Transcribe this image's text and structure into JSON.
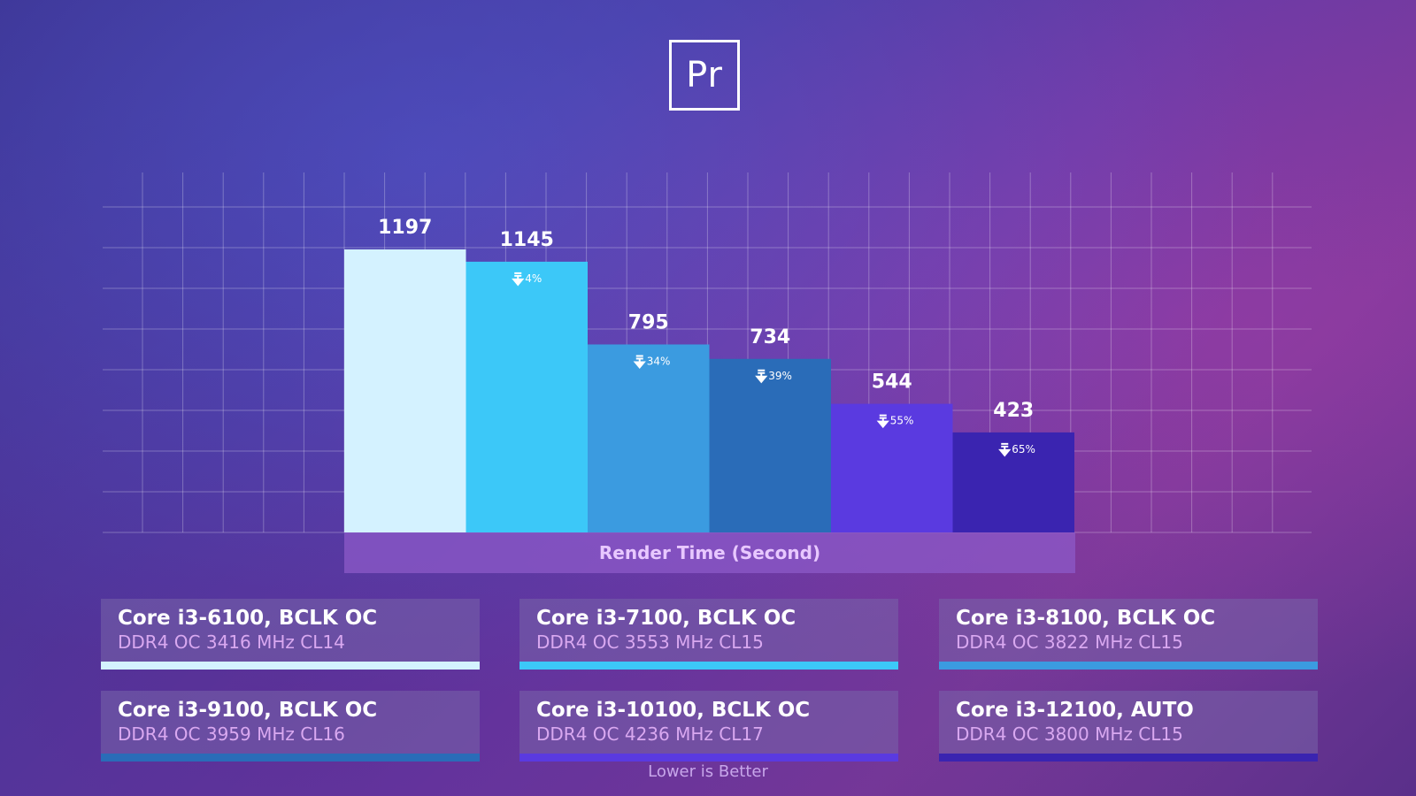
{
  "logo": {
    "text": "Pr"
  },
  "chart_data": {
    "type": "bar",
    "title": "",
    "xlabel": "Render Time (Second)",
    "ylabel": "",
    "ylim": [
      0,
      1400
    ],
    "grid": true,
    "categories": [
      "Core i3-6100, BCLK OC",
      "Core i3-7100, BCLK OC",
      "Core i3-8100, BCLK OC",
      "Core i3-9100, BCLK OC",
      "Core i3-10100, BCLK OC",
      "Core i3-12100, AUTO"
    ],
    "values": [
      1197,
      1145,
      795,
      734,
      544,
      423
    ],
    "value_labels": [
      "1197",
      "1145",
      "795",
      "734",
      "544",
      "423"
    ],
    "percent_labels": [
      "",
      "4%",
      "34%",
      "39%",
      "55%",
      "65%"
    ],
    "colors": [
      "#d4f2ff",
      "#3cc8f8",
      "#3b9be0",
      "#2a6cb8",
      "#5a3ae0",
      "#3a24b0"
    ]
  },
  "legend": [
    {
      "name": "Core i3-6100, BCLK OC",
      "sub": "DDR4 OC 3416 MHz CL14",
      "color": "#d4f2ff"
    },
    {
      "name": "Core i3-7100, BCLK OC",
      "sub": "DDR4 OC 3553 MHz CL15",
      "color": "#3cc8f8"
    },
    {
      "name": "Core i3-8100, BCLK OC",
      "sub": "DDR4 OC 3822 MHz CL15",
      "color": "#3b9be0"
    },
    {
      "name": "Core i3-9100, BCLK OC",
      "sub": "DDR4 OC 3959 MHz CL16",
      "color": "#2a6cb8"
    },
    {
      "name": "Core i3-10100, BCLK OC",
      "sub": "DDR4 OC 4236 MHz CL17",
      "color": "#5a3ae0"
    },
    {
      "name": "Core i3-12100, AUTO",
      "sub": "DDR4 OC 3800 MHz CL15",
      "color": "#3a24b0"
    }
  ],
  "footnote": "Lower is Better"
}
